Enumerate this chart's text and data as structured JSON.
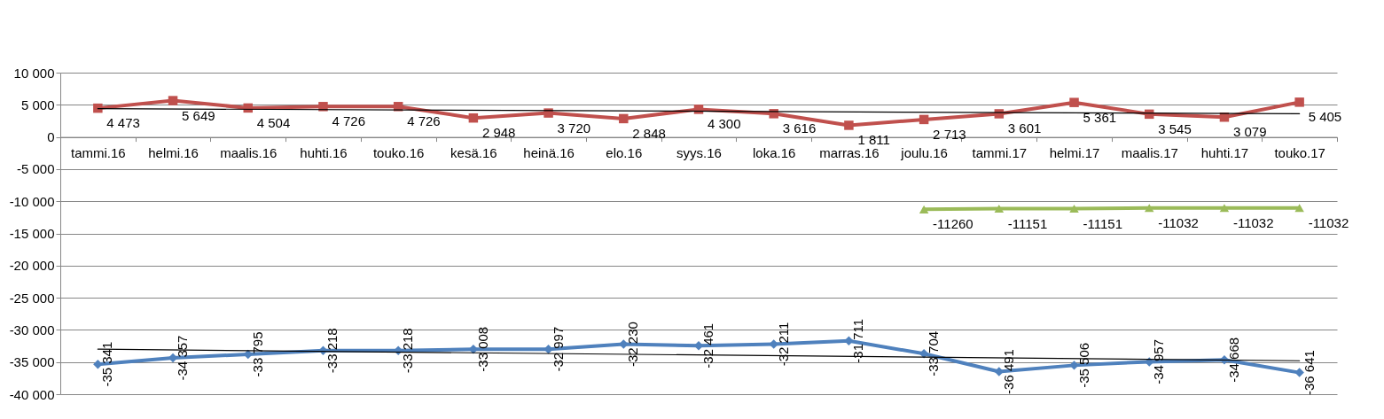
{
  "chart_data": {
    "type": "line",
    "categories": [
      "tammi.16",
      "helmi.16",
      "maalis.16",
      "huhti.16",
      "touko.16",
      "kesä.16",
      "heinä.16",
      "elo.16",
      "syys.16",
      "loka.16",
      "marras.16",
      "joulu.16",
      "tammi.17",
      "helmi.17",
      "maalis.17",
      "huhti.17",
      "touko.17"
    ],
    "ylim": [
      -40000,
      10000
    ],
    "yticks": [
      {
        "value": -40000,
        "label": "-40 000"
      },
      {
        "value": -35000,
        "label": "-35 000"
      },
      {
        "value": -30000,
        "label": "-30 000"
      },
      {
        "value": -25000,
        "label": "-25 000"
      },
      {
        "value": -20000,
        "label": "-20 000"
      },
      {
        "value": -15000,
        "label": "-15 000"
      },
      {
        "value": -10000,
        "label": "-10 000"
      },
      {
        "value": -5000,
        "label": "-5 000"
      },
      0,
      {
        "value": 5000,
        "label": "5 000"
      },
      {
        "value": 10000,
        "label": "10 000"
      }
    ],
    "grid": "y",
    "line_style": "solid",
    "series": [
      {
        "color": "#c0504d",
        "marker": "square",
        "values": [
          4473,
          5649,
          4504,
          4726,
          4726,
          2948,
          3720,
          2848,
          4300,
          3616,
          1811,
          2713,
          3601,
          5361,
          3545,
          3079,
          5405
        ],
        "value_labels": [
          "4 473",
          "5 649",
          "4 504",
          "4 726",
          "4 726",
          "2 948",
          "3 720",
          "2 848",
          "4 300",
          "3 616",
          "1 811",
          "2 713",
          "3 601",
          "5 361",
          "3 545",
          "3 079",
          "5 405"
        ]
      },
      {
        "color": "#4f81bd",
        "marker": "diamond",
        "values": [
          -35341,
          -34357,
          -33795,
          -33218,
          -33218,
          -33008,
          -32997,
          -32230,
          -32461,
          -32211,
          -31711,
          -33704,
          -36491,
          -35506,
          -34957,
          -34668,
          -36641
        ],
        "value_labels": [
          "-35 341",
          "-34 357",
          "-33 795",
          "-33 218",
          "-33 218",
          "-33 008",
          "-32 997",
          "-32 230",
          "-32 461",
          "-32 211",
          "-31 711",
          "-33 704",
          "-36 491",
          "-35 506",
          "-34 957",
          "-34 668",
          "-36 641"
        ]
      },
      {
        "color": "#9bbb59",
        "marker": "triangle",
        "values": [
          null,
          null,
          null,
          null,
          null,
          null,
          null,
          null,
          null,
          null,
          null,
          -11260,
          -11151,
          -11151,
          -11032,
          -11032,
          -11032
        ],
        "value_labels": [
          null,
          null,
          null,
          null,
          null,
          null,
          null,
          null,
          null,
          null,
          null,
          "-11260",
          "-11151",
          "-11151",
          "-11032",
          "-11032",
          "-11032"
        ]
      },
      {
        "type": "line",
        "color": "#000000",
        "marker": "none",
        "x": [
          "tammi.16",
          "touko.17"
        ],
        "values": [
          4400,
          3600
        ]
      },
      {
        "type": "line",
        "color": "#000000",
        "marker": "none",
        "x": [
          "tammi.16",
          "touko.17"
        ],
        "values": [
          -33000,
          -34800
        ]
      }
    ]
  }
}
